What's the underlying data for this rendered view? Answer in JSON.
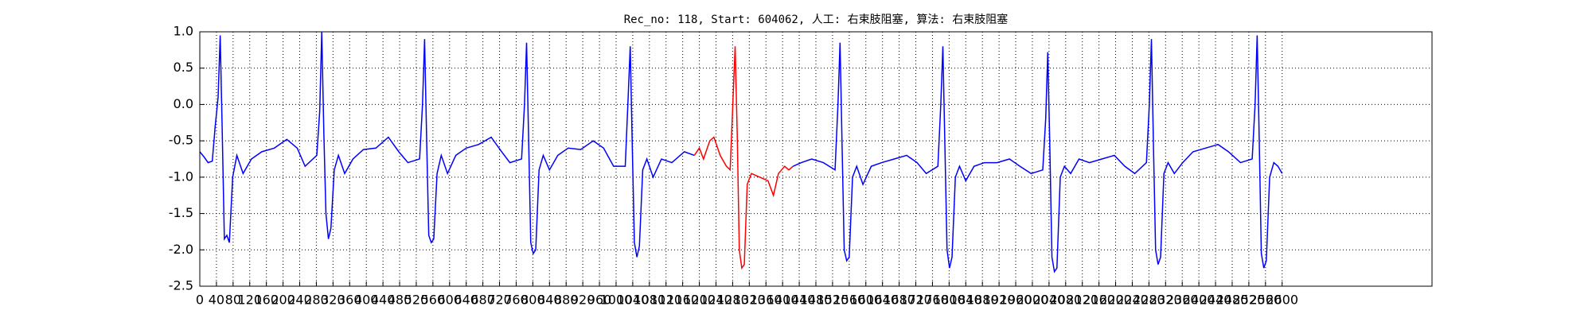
{
  "chart_data": {
    "type": "line",
    "title": "Rec_no: 118, Start: 604062, 人工: 右束肢阻塞, 算法: 右束肢阻塞",
    "xlim": [
      0,
      2960
    ],
    "ylim": [
      -2.5,
      1.0
    ],
    "xticks": [
      0,
      40,
      80,
      120,
      160,
      200,
      240,
      280,
      320,
      360,
      400,
      440,
      480,
      520,
      560,
      600,
      640,
      680,
      720,
      760,
      800,
      840,
      880,
      920,
      960,
      1000,
      1040,
      1080,
      1120,
      1160,
      1200,
      1240,
      1280,
      1320,
      1360,
      1400,
      1440,
      1480,
      1520,
      1560,
      1600,
      1640,
      1680,
      1720,
      1760,
      1800,
      1840,
      1880,
      1920,
      1960,
      2000,
      2040,
      2080,
      2120,
      2160,
      2200,
      2240,
      2280,
      2320,
      2360,
      2400,
      2440,
      2480,
      2520,
      2560,
      2600
    ],
    "yticks": [
      {
        "value": 1.0,
        "label": "1.0"
      },
      0.5,
      {
        "value": 0.0,
        "label": "0.0"
      },
      -0.5,
      {
        "value": -1.0,
        "label": "-1.0"
      },
      -1.5,
      {
        "value": -2.0,
        "label": "-2.0"
      },
      -2.5
    ],
    "grid": true,
    "series": [
      {
        "color": "#0000ff",
        "x": [
          0,
          10,
          20,
          30,
          37,
          44,
          49,
          54,
          59,
          65,
          71,
          79,
          89,
          104,
          124,
          149,
          179,
          209,
          234,
          253,
          281,
          288,
          293,
          298,
          303,
          309,
          315,
          323,
          333,
          348,
          368,
          393,
          423,
          453,
          478,
          500,
          528,
          535,
          540,
          545,
          550,
          556,
          562,
          570,
          580,
          595,
          615,
          640,
          670,
          700,
          725,
          745,
          773,
          780,
          785,
          790,
          795,
          801,
          807,
          815,
          825,
          840,
          860,
          885,
          915,
          945,
          970,
          994,
          1022,
          1029,
          1034,
          1039,
          1044,
          1050,
          1056,
          1064,
          1074,
          1089,
          1109,
          1134,
          1164,
          1188,
          1300,
          1425,
          1445,
          1470,
          1498,
          1526,
          1533,
          1538,
          1543,
          1548,
          1554,
          1560,
          1568,
          1578,
          1593,
          1613,
          1638,
          1668,
          1698,
          1723,
          1745,
          1773,
          1780,
          1785,
          1790,
          1795,
          1801,
          1807,
          1815,
          1825,
          1840,
          1860,
          1885,
          1915,
          1945,
          1970,
          1997,
          2025,
          2032,
          2037,
          2042,
          2047,
          2053,
          2059,
          2067,
          2077,
          2092,
          2112,
          2137,
          2167,
          2197,
          2222,
          2246,
          2274,
          2281,
          2286,
          2291,
          2296,
          2302,
          2308,
          2316,
          2326,
          2341,
          2361,
          2386,
          2416,
          2446,
          2471,
          2500,
          2528,
          2535,
          2540,
          2545,
          2550,
          2556,
          2562,
          2570,
          2580,
          2590,
          2600
        ],
        "values": [
          -0.65,
          -0.72,
          -0.8,
          -0.78,
          -0.3,
          0.1,
          0.95,
          -0.4,
          -1.85,
          -1.8,
          -1.9,
          -1.0,
          -0.7,
          -0.95,
          -0.75,
          -0.65,
          -0.6,
          -0.48,
          -0.6,
          -0.85,
          -0.7,
          -0.1,
          1.0,
          -0.4,
          -1.5,
          -1.85,
          -1.7,
          -0.9,
          -0.7,
          -0.95,
          -0.75,
          -0.62,
          -0.6,
          -0.45,
          -0.65,
          -0.8,
          -0.75,
          0.0,
          0.9,
          -0.5,
          -1.8,
          -1.9,
          -1.85,
          -0.95,
          -0.7,
          -0.95,
          -0.7,
          -0.6,
          -0.55,
          -0.45,
          -0.65,
          -0.8,
          -0.75,
          0.0,
          0.85,
          -0.5,
          -1.9,
          -2.05,
          -2.0,
          -0.9,
          -0.7,
          -0.9,
          -0.7,
          -0.6,
          -0.62,
          -0.5,
          -0.6,
          -0.85,
          -0.85,
          0.1,
          0.8,
          -0.6,
          -1.9,
          -2.1,
          -1.95,
          -0.9,
          -0.75,
          -1.0,
          -0.75,
          -0.8,
          -0.65,
          -0.7,
          null,
          -0.85,
          -0.8,
          -0.75,
          -0.8,
          -0.9,
          0.0,
          0.85,
          -0.6,
          -2.0,
          -2.15,
          -2.1,
          -1.0,
          -0.85,
          -1.1,
          -0.85,
          -0.8,
          -0.75,
          -0.7,
          -0.8,
          -0.95,
          -0.85,
          0.0,
          0.8,
          -0.6,
          -2.0,
          -2.25,
          -2.1,
          -1.0,
          -0.85,
          -1.05,
          -0.85,
          -0.8,
          -0.8,
          -0.75,
          -0.85,
          -0.95,
          -0.9,
          -0.2,
          0.72,
          -0.6,
          -2.1,
          -2.3,
          -2.25,
          -1.0,
          -0.85,
          -0.95,
          -0.75,
          -0.8,
          -0.75,
          -0.7,
          -0.85,
          -0.95,
          -0.8,
          0.0,
          0.9,
          -0.6,
          -2.0,
          -2.2,
          -2.1,
          -0.95,
          -0.8,
          -0.95,
          -0.8,
          -0.65,
          -0.6,
          -0.55,
          -0.65,
          -0.8,
          -0.75,
          0.0,
          0.95,
          -0.5,
          -2.05,
          -2.25,
          -2.15,
          -1.0,
          -0.8,
          -0.85,
          -0.95
        ]
      },
      {
        "color": "#ff0000",
        "x": [
          1188,
          1200,
          1210,
          1225,
          1235,
          1250,
          1265,
          1274,
          1279,
          1286,
          1291,
          1296,
          1302,
          1308,
          1315,
          1325,
          1345,
          1365,
          1378,
          1390,
          1405,
          1415,
          1425
        ],
        "values": [
          -0.7,
          -0.6,
          -0.75,
          -0.5,
          -0.45,
          -0.7,
          -0.85,
          -0.9,
          -0.2,
          0.8,
          -0.4,
          -2.0,
          -2.25,
          -2.2,
          -1.1,
          -0.95,
          -1.0,
          -1.05,
          -1.25,
          -0.95,
          -0.85,
          -0.9,
          -0.85
        ]
      }
    ]
  }
}
